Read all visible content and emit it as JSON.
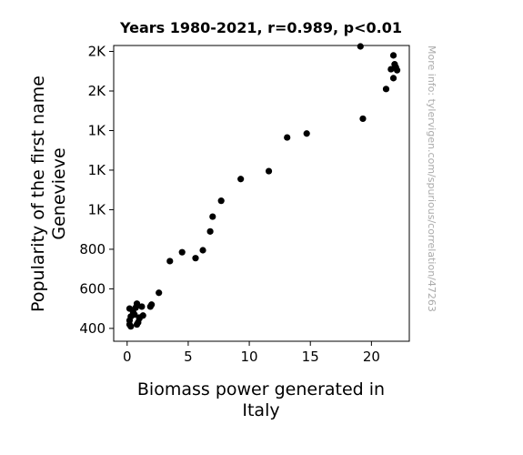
{
  "chart_data": {
    "type": "scatter",
    "title": "Years 1980-2021, r=0.989, p<0.01",
    "xlabel": [
      "Biomass power generated in",
      "Italy"
    ],
    "ylabel": [
      "Popularity of the first name",
      "Genevieve"
    ],
    "xlim": [
      -1.1,
      23.1
    ],
    "ylim": [
      335,
      1830
    ],
    "x_ticks": [
      {
        "value": 0,
        "label": "0"
      },
      {
        "value": 5,
        "label": "5"
      },
      {
        "value": 10,
        "label": "10"
      },
      {
        "value": 15,
        "label": "15"
      },
      {
        "value": 20,
        "label": "20"
      }
    ],
    "y_ticks": [
      {
        "value": 400,
        "label": "400"
      },
      {
        "value": 600,
        "label": "600"
      },
      {
        "value": 800,
        "label": "800"
      },
      {
        "value": 1000,
        "label": "1K"
      },
      {
        "value": 1200,
        "label": "1K"
      },
      {
        "value": 1400,
        "label": "1K"
      },
      {
        "value": 1600,
        "label": "2K"
      },
      {
        "value": 1800,
        "label": "2K"
      }
    ],
    "marker_color": "#000000",
    "grid": false,
    "points": [
      {
        "x": 0.2,
        "y": 500
      },
      {
        "x": 0.3,
        "y": 460
      },
      {
        "x": 0.2,
        "y": 440
      },
      {
        "x": 0.2,
        "y": 420
      },
      {
        "x": 0.3,
        "y": 410
      },
      {
        "x": 0.5,
        "y": 480
      },
      {
        "x": 0.6,
        "y": 470
      },
      {
        "x": 0.7,
        "y": 505
      },
      {
        "x": 0.8,
        "y": 525
      },
      {
        "x": 0.8,
        "y": 420
      },
      {
        "x": 0.9,
        "y": 430
      },
      {
        "x": 1.0,
        "y": 450
      },
      {
        "x": 1.0,
        "y": 455
      },
      {
        "x": 1.2,
        "y": 510
      },
      {
        "x": 1.3,
        "y": 465
      },
      {
        "x": 1.9,
        "y": 510
      },
      {
        "x": 2.0,
        "y": 520
      },
      {
        "x": 2.6,
        "y": 580
      },
      {
        "x": 3.5,
        "y": 740
      },
      {
        "x": 4.5,
        "y": 785
      },
      {
        "x": 5.6,
        "y": 755
      },
      {
        "x": 6.2,
        "y": 795
      },
      {
        "x": 6.8,
        "y": 890
      },
      {
        "x": 7.0,
        "y": 965
      },
      {
        "x": 7.7,
        "y": 1045
      },
      {
        "x": 9.3,
        "y": 1155
      },
      {
        "x": 11.6,
        "y": 1195
      },
      {
        "x": 13.1,
        "y": 1365
      },
      {
        "x": 14.7,
        "y": 1385
      },
      {
        "x": 19.1,
        "y": 1835
      },
      {
        "x": 19.3,
        "y": 1460
      },
      {
        "x": 21.2,
        "y": 1610
      },
      {
        "x": 21.6,
        "y": 1710
      },
      {
        "x": 21.8,
        "y": 1780
      },
      {
        "x": 21.8,
        "y": 1665
      },
      {
        "x": 21.9,
        "y": 1735
      },
      {
        "x": 22.0,
        "y": 1720
      },
      {
        "x": 22.1,
        "y": 1705
      }
    ]
  },
  "credit": "More info: tylervigen.com/spurious/correlation/47263"
}
